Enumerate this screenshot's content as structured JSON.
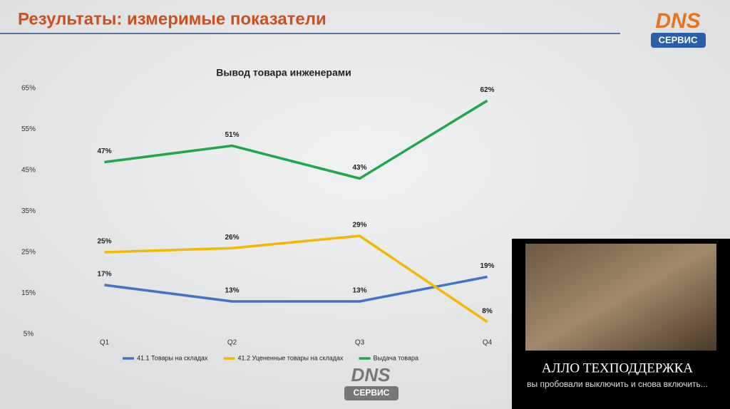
{
  "slide_title": "Результаты: измеримые показатели",
  "logo": {
    "brand": "DNS",
    "service": "СЕРВИС"
  },
  "chart_data": {
    "type": "line",
    "title": "Вывод товара инженерами",
    "categories": [
      "Q1",
      "Q2",
      "Q3",
      "Q4"
    ],
    "series": [
      {
        "name": "41.1 Товары на складах",
        "color": "#4472c4",
        "values": [
          17,
          13,
          13,
          19
        ],
        "value_labels": [
          "17%",
          "13%",
          "13%",
          "19%"
        ]
      },
      {
        "name": "41.2 Уцененные товары на складах",
        "color": "#f5b800",
        "values": [
          25,
          26,
          29,
          8
        ],
        "value_labels": [
          "25%",
          "26%",
          "29%",
          "8%"
        ]
      },
      {
        "name": "Выдача товара",
        "color": "#1fa84b",
        "values": [
          47,
          51,
          43,
          62
        ],
        "value_labels": [
          "47%",
          "51%",
          "43%",
          "62%"
        ]
      }
    ],
    "ylim": [
      5,
      65
    ],
    "yticks": [
      {
        "value": 5,
        "label": "5%"
      },
      {
        "value": 15,
        "label": "15%"
      },
      {
        "value": 25,
        "label": "25%"
      },
      {
        "value": 35,
        "label": "35%"
      },
      {
        "value": 45,
        "label": "45%"
      },
      {
        "value": 55,
        "label": "55%"
      },
      {
        "value": 65,
        "label": "65%"
      }
    ],
    "grid": false,
    "legend": "bottom"
  },
  "caption": {
    "headline": "АЛЛО ТЕХПОДДЕРЖКА",
    "subline": "вы пробовали выключить и снова включить..."
  }
}
